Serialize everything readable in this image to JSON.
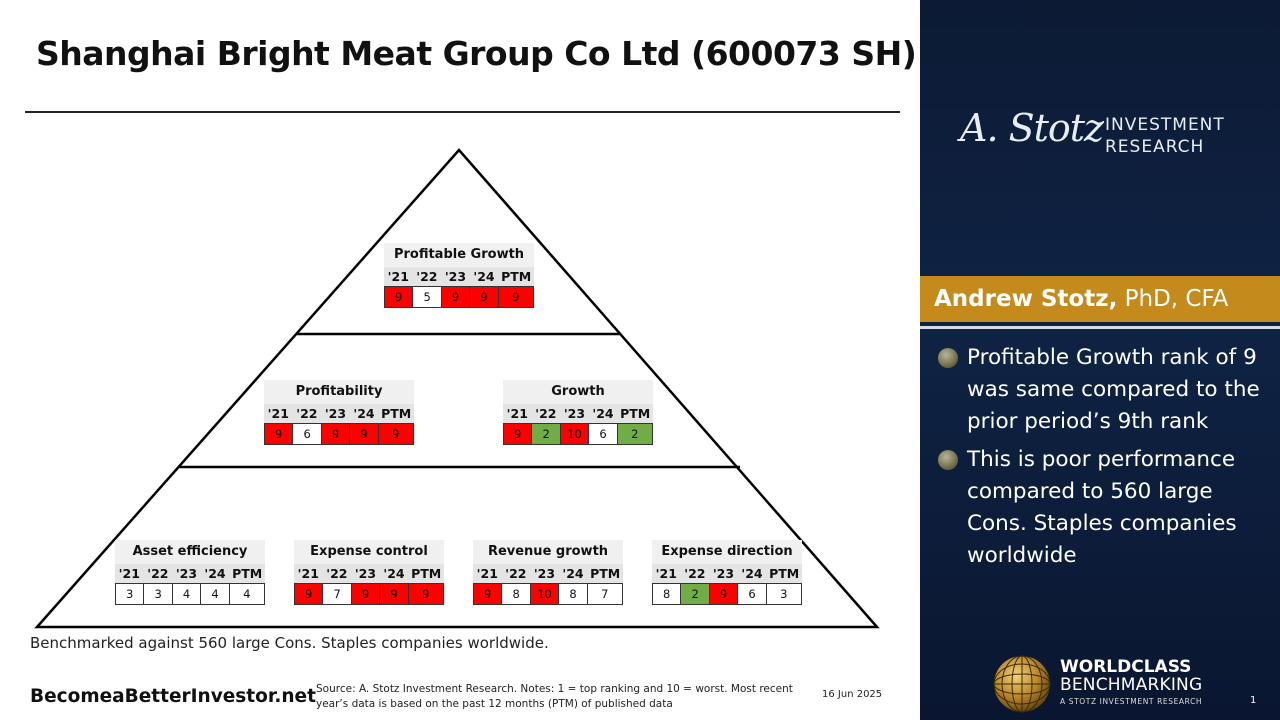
{
  "title": "Shanghai Bright Meat Group Co Ltd (600073 SH)",
  "year_headers": [
    "'21",
    "'22",
    "'23",
    "'24",
    "PTM"
  ],
  "boxes": {
    "profitable_growth": {
      "title": "Profitable Growth",
      "values": [
        "9",
        "5",
        "9",
        "9",
        "9"
      ],
      "colors": [
        "red",
        "white",
        "red",
        "red",
        "red"
      ]
    },
    "profitability": {
      "title": "Profitability",
      "values": [
        "9",
        "6",
        "9",
        "9",
        "9"
      ],
      "colors": [
        "red",
        "white",
        "red",
        "red",
        "red"
      ]
    },
    "growth": {
      "title": "Growth",
      "values": [
        "9",
        "2",
        "10",
        "6",
        "2"
      ],
      "colors": [
        "red",
        "green",
        "red",
        "white",
        "green"
      ]
    },
    "asset_efficiency": {
      "title": "Asset efficiency",
      "values": [
        "3",
        "3",
        "4",
        "4",
        "4"
      ],
      "colors": [
        "white",
        "white",
        "white",
        "white",
        "white"
      ]
    },
    "expense_control": {
      "title": "Expense control",
      "values": [
        "9",
        "7",
        "9",
        "9",
        "9"
      ],
      "colors": [
        "red",
        "white",
        "red",
        "red",
        "red"
      ]
    },
    "revenue_growth": {
      "title": "Revenue growth",
      "values": [
        "9",
        "8",
        "10",
        "8",
        "7"
      ],
      "colors": [
        "red",
        "white",
        "red",
        "white",
        "white"
      ]
    },
    "expense_direction": {
      "title": "Expense direction",
      "values": [
        "8",
        "2",
        "9",
        "6",
        "3"
      ],
      "colors": [
        "white",
        "green",
        "red",
        "white",
        "white"
      ]
    }
  },
  "cell_colors": {
    "red": "#ff0000",
    "green": "#70ad47",
    "white": "#ffffff"
  },
  "benchmark_text": "Benchmarked against 560 large Cons. Staples companies worldwide.",
  "footer": {
    "site": "BecomeaBetterInvestor.net",
    "source": "Source: A. Stotz Investment Research. Notes: 1 = top ranking and 10 = worst. Most recent year’s data is based on the past 12 months (PTM) of published data",
    "date": "16 Jun 2025"
  },
  "sidebar": {
    "logo_script": "A. Stotz",
    "logo_line1": "INVESTMENT",
    "logo_line2": "RESEARCH",
    "author_name": "Andrew Stotz,",
    "author_credentials": " PhD, CFA",
    "bullets": [
      "Profitable Growth rank of 9 was same compared to the prior period’s 9th rank",
      "This is poor performance compared to 560 large Cons. Staples companies worldwide"
    ],
    "wcb_line1": "WORLDCLASS",
    "wcb_line2": "BENCHMARKING",
    "wcb_line3": "A STOTZ INVESTMENT RESEARCH",
    "page_number": "1"
  },
  "colors": {
    "panel_bg": "#0f2344",
    "accent_gold": "#c48a1c"
  }
}
